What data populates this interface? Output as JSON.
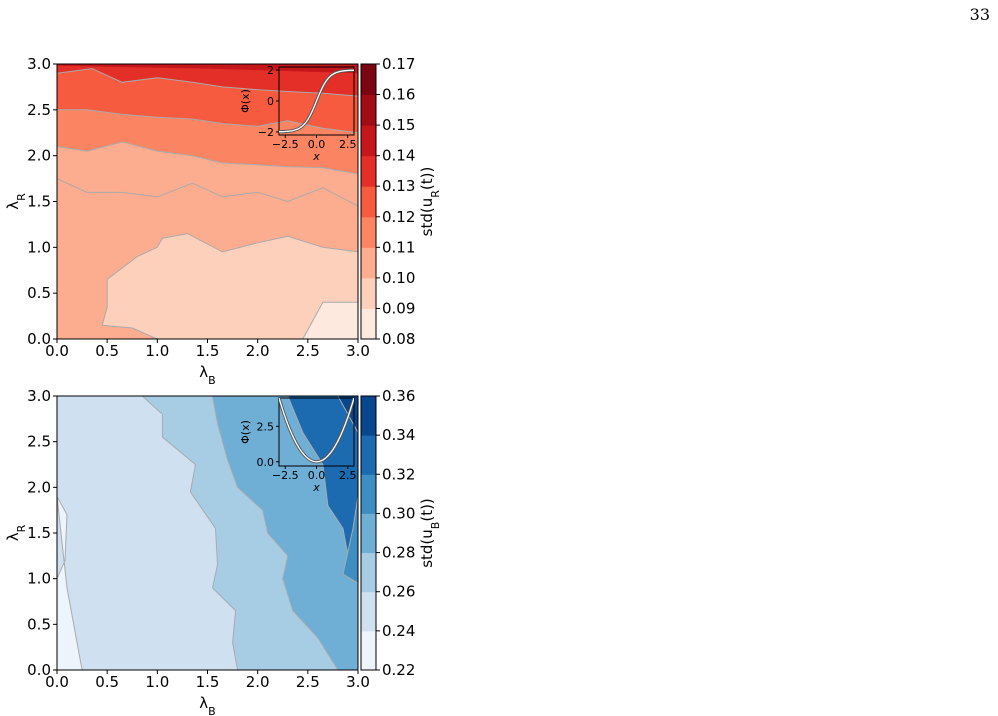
{
  "page_number": "33",
  "chart_data": [
    {
      "type": "contour",
      "panel": "top",
      "xlabel": "λ_B",
      "ylabel": "λ_R",
      "xlim": [
        0,
        3
      ],
      "ylim": [
        0,
        3
      ],
      "xticks": [
        "0.0",
        "0.5",
        "1.0",
        "1.5",
        "2.0",
        "2.5",
        "3.0"
      ],
      "yticks": [
        "0.0",
        "0.5",
        "1.0",
        "1.5",
        "2.0",
        "2.5",
        "3.0"
      ],
      "colorbar": {
        "label": "std(u_R(t))",
        "levels": [
          0.08,
          0.09,
          0.1,
          0.11,
          0.12,
          0.13,
          0.14,
          0.15,
          0.16,
          0.17
        ],
        "tick_labels": [
          "0.08",
          "0.09",
          "0.10",
          "0.11",
          "0.12",
          "0.13",
          "0.14",
          "0.15",
          "0.16",
          "0.17"
        ],
        "colors": [
          "#fee9df",
          "#fdd0bc",
          "#fcac8f",
          "#fb8463",
          "#f65b40",
          "#e32f27",
          "#c4161b",
          "#a10c15",
          "#7b0510"
        ]
      },
      "bands": [
        {
          "level_index": 0,
          "boundary_x": [
            2.45,
            2.65,
            3.0
          ],
          "boundary_y": [
            0.0,
            0.4,
            0.4
          ]
        },
        {
          "level_index": 1,
          "boundary_x": [
            0.5,
            0.8,
            1.0,
            1.05,
            1.3,
            1.65,
            2.0,
            2.3,
            2.65,
            3.0
          ],
          "boundary_y": [
            0.65,
            0.9,
            1.0,
            1.1,
            1.15,
            0.95,
            1.05,
            1.12,
            1.0,
            0.95
          ]
        },
        {
          "level_index": 2,
          "boundary_x": [
            0.0,
            0.3,
            0.65,
            1.0,
            1.35,
            1.65,
            2.0,
            2.3,
            2.65,
            3.0
          ],
          "boundary_y": [
            1.75,
            1.6,
            1.6,
            1.55,
            1.7,
            1.55,
            1.6,
            1.5,
            1.65,
            1.45
          ]
        },
        {
          "level_index": 3,
          "boundary_x": [
            0.0,
            0.3,
            0.65,
            1.0,
            1.35,
            1.65,
            2.0,
            2.3,
            2.65,
            3.0
          ],
          "boundary_y": [
            2.1,
            2.05,
            2.15,
            2.05,
            2.0,
            1.92,
            1.9,
            1.88,
            1.87,
            1.8
          ]
        },
        {
          "level_index": 4,
          "boundary_x": [
            0.0,
            0.3,
            0.65,
            1.0,
            1.35,
            1.65,
            2.0,
            2.3,
            2.65,
            3.0
          ],
          "boundary_y": [
            2.5,
            2.5,
            2.45,
            2.42,
            2.4,
            2.35,
            2.32,
            2.38,
            2.3,
            2.25
          ]
        },
        {
          "level_index": 5,
          "boundary_x": [
            0.0,
            0.35,
            0.65,
            1.0,
            1.35,
            1.65,
            2.0,
            2.3,
            2.65,
            3.0
          ],
          "boundary_y": [
            2.9,
            2.95,
            2.8,
            2.85,
            2.8,
            2.75,
            2.72,
            2.7,
            2.68,
            2.65
          ]
        }
      ],
      "inset": {
        "xlabel": "x",
        "ylabel": "Φ(x)",
        "xticks": [
          "−2.5",
          "0.0",
          "2.5"
        ],
        "yticks": [
          "−2",
          "0",
          "2"
        ],
        "function": "tanh",
        "xlim": [
          -3,
          3
        ],
        "ylim": [
          -2.2,
          2.2
        ]
      }
    },
    {
      "type": "contour",
      "panel": "bottom",
      "xlabel": "λ_B",
      "ylabel": "λ_R",
      "xlim": [
        0,
        3
      ],
      "ylim": [
        0,
        3
      ],
      "xticks": [
        "0.0",
        "0.5",
        "1.0",
        "1.5",
        "2.0",
        "2.5",
        "3.0"
      ],
      "yticks": [
        "0.0",
        "0.5",
        "1.0",
        "1.5",
        "2.0",
        "2.5",
        "3.0"
      ],
      "colorbar": {
        "label": "std(u_B(t))",
        "levels": [
          0.22,
          0.24,
          0.26,
          0.28,
          0.3,
          0.32,
          0.34,
          0.36
        ],
        "tick_labels": [
          "0.22",
          "0.24",
          "0.26",
          "0.28",
          "0.30",
          "0.32",
          "0.34",
          "0.36"
        ],
        "colors": [
          "#eef4fb",
          "#cfe0f1",
          "#a7cde4",
          "#6faed5",
          "#3e8ec4",
          "#1c6ab0",
          "#08468e"
        ]
      },
      "bands": [
        {
          "level_index": 0,
          "boundary_x": [
            0.0,
            0.1,
            0.08,
            0.0
          ],
          "boundary_y": [
            1.9,
            1.7,
            1.2,
            1.0
          ]
        },
        {
          "level_index": 1,
          "boundary_x": [
            0.0,
            0.35,
            0.37,
            0.35,
            0.5,
            0.6,
            0.75,
            0.65,
            0.85,
            0.85,
            0.75
          ],
          "boundary_y": [
            3.0,
            3.0,
            2.65,
            2.5,
            2.2,
            1.95,
            1.65,
            1.15,
            0.65,
            0.3,
            0.0
          ]
        },
        {
          "level_index": 2,
          "boundary_x": [
            0.85,
            1.05,
            1.05,
            1.38,
            1.33,
            1.58,
            1.6,
            1.55,
            1.78,
            1.75,
            1.8
          ],
          "boundary_y": [
            3.0,
            2.8,
            2.55,
            2.25,
            1.95,
            1.55,
            1.15,
            0.9,
            0.65,
            0.3,
            0.0
          ]
        },
        {
          "level_index": 3,
          "boundary_x": [
            1.55,
            1.6,
            1.7,
            1.8,
            2.05,
            2.1,
            2.3,
            2.25,
            2.35,
            2.6,
            2.8
          ],
          "boundary_y": [
            3.0,
            2.7,
            2.3,
            2.0,
            1.75,
            1.5,
            1.25,
            1.0,
            0.65,
            0.35,
            0.0
          ]
        },
        {
          "level_index": 4,
          "boundary_x": [
            2.95,
            2.9,
            2.85,
            2.95,
            3.0
          ],
          "boundary_y": [
            1.5,
            1.2,
            1.05,
            1.0,
            1.0
          ]
        },
        {
          "level_index": 5,
          "boundary_x": [
            2.8,
            3.0
          ],
          "boundary_y": [
            3.0,
            2.6
          ]
        }
      ],
      "inset": {
        "xlabel": "x",
        "ylabel": "Φ(x)",
        "xticks": [
          "−2.5",
          "0.0",
          "2.5"
        ],
        "yticks": [
          "0.0",
          "2.5"
        ],
        "function": "x^2/2",
        "xlim": [
          -3,
          3
        ],
        "ylim": [
          -0.3,
          4.5
        ]
      }
    }
  ]
}
